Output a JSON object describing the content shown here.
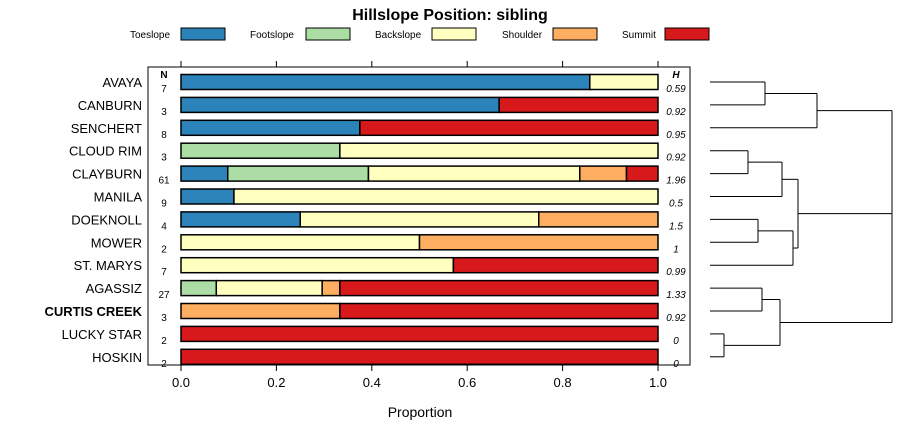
{
  "chart_data": {
    "type": "bar",
    "orientation": "horizontal",
    "stacked": true,
    "title": "Hillslope Position: sibling",
    "xlabel": "Proportion",
    "xlim": [
      0,
      1
    ],
    "x_ticks": [
      "0.0",
      "0.2",
      "0.4",
      "0.6",
      "0.8",
      "1.0"
    ],
    "legend_position": "top",
    "n_header": "N",
    "h_header": "H",
    "series": [
      {
        "name": "Toeslope",
        "color": "#2b83ba"
      },
      {
        "name": "Footslope",
        "color": "#abdda4"
      },
      {
        "name": "Backslope",
        "color": "#ffffbf"
      },
      {
        "name": "Shoulder",
        "color": "#fdae61"
      },
      {
        "name": "Summit",
        "color": "#d7191c"
      }
    ],
    "categories": [
      {
        "label": "AVAYA",
        "n": "7",
        "h": "0.59",
        "bold": false,
        "values": [
          0.857,
          0,
          0.143,
          0,
          0
        ]
      },
      {
        "label": "CANBURN",
        "n": "3",
        "h": "0.92",
        "bold": false,
        "values": [
          0.667,
          0,
          0,
          0,
          0.333
        ]
      },
      {
        "label": "SENCHERT",
        "n": "8",
        "h": "0.95",
        "bold": false,
        "values": [
          0.375,
          0,
          0,
          0,
          0.625
        ]
      },
      {
        "label": "CLOUD RIM",
        "n": "3",
        "h": "0.92",
        "bold": false,
        "values": [
          0,
          0.333,
          0.667,
          0,
          0
        ]
      },
      {
        "label": "CLAYBURN",
        "n": "61",
        "h": "1.96",
        "bold": false,
        "values": [
          0.098,
          0.295,
          0.443,
          0.098,
          0.066
        ]
      },
      {
        "label": "MANILA",
        "n": "9",
        "h": "0.5",
        "bold": false,
        "values": [
          0.111,
          0,
          0.889,
          0,
          0
        ]
      },
      {
        "label": "DOEKNOLL",
        "n": "4",
        "h": "1.5",
        "bold": false,
        "values": [
          0.25,
          0,
          0.5,
          0.25,
          0
        ]
      },
      {
        "label": "MOWER",
        "n": "2",
        "h": "1",
        "bold": false,
        "values": [
          0,
          0,
          0.5,
          0.5,
          0
        ]
      },
      {
        "label": "ST. MARYS",
        "n": "7",
        "h": "0.99",
        "bold": false,
        "values": [
          0,
          0,
          0.571,
          0,
          0.429
        ]
      },
      {
        "label": "AGASSIZ",
        "n": "27",
        "h": "1.33",
        "bold": false,
        "values": [
          0,
          0.074,
          0.222,
          0.037,
          0.667
        ]
      },
      {
        "label": "CURTIS CREEK",
        "n": "3",
        "h": "0.92",
        "bold": true,
        "values": [
          0,
          0,
          0,
          0.333,
          0.667
        ]
      },
      {
        "label": "LUCKY STAR",
        "n": "2",
        "h": "0",
        "bold": false,
        "values": [
          0,
          0,
          0,
          0,
          1
        ]
      },
      {
        "label": "HOSKIN",
        "n": "2",
        "h": "0",
        "bold": false,
        "values": [
          0,
          0,
          0,
          0,
          1
        ]
      }
    ]
  }
}
